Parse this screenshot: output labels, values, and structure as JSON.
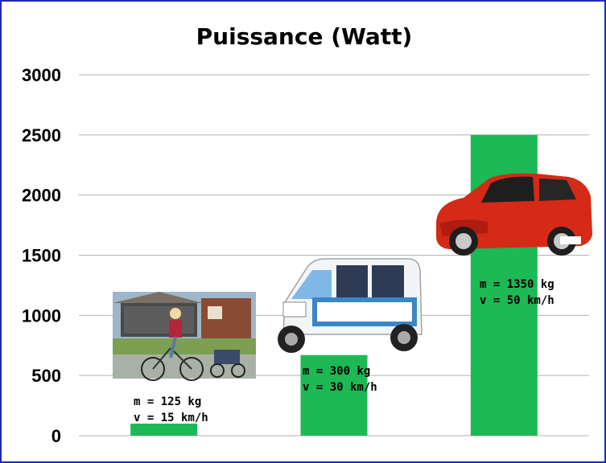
{
  "chart_data": {
    "type": "bar",
    "title": "Puissance (Watt)",
    "xlabel": "",
    "ylabel": "",
    "ylim": [
      0,
      3000
    ],
    "yticks": [
      0,
      500,
      1000,
      1500,
      2000,
      2500,
      3000
    ],
    "grid": true,
    "color": "#1db954",
    "categories": [
      "",
      "",
      ""
    ],
    "values": [
      100,
      670,
      2500
    ],
    "annotations": [
      {
        "line1": "m = 125 kg",
        "line2": "v = 15 km/h"
      },
      {
        "line1": "m = 300 kg",
        "line2": "v = 30 km/h"
      },
      {
        "line1": "m = 1350 kg",
        "line2": "v = 50 km/h"
      }
    ],
    "icons": [
      "bicycle-with-trailer-photo",
      "electric-microcar-photo",
      "red-hatchback-car-photo"
    ]
  },
  "colors": {
    "border": "#1f2bb8",
    "bar": "#1db954",
    "grid": "#b0b0b0"
  }
}
